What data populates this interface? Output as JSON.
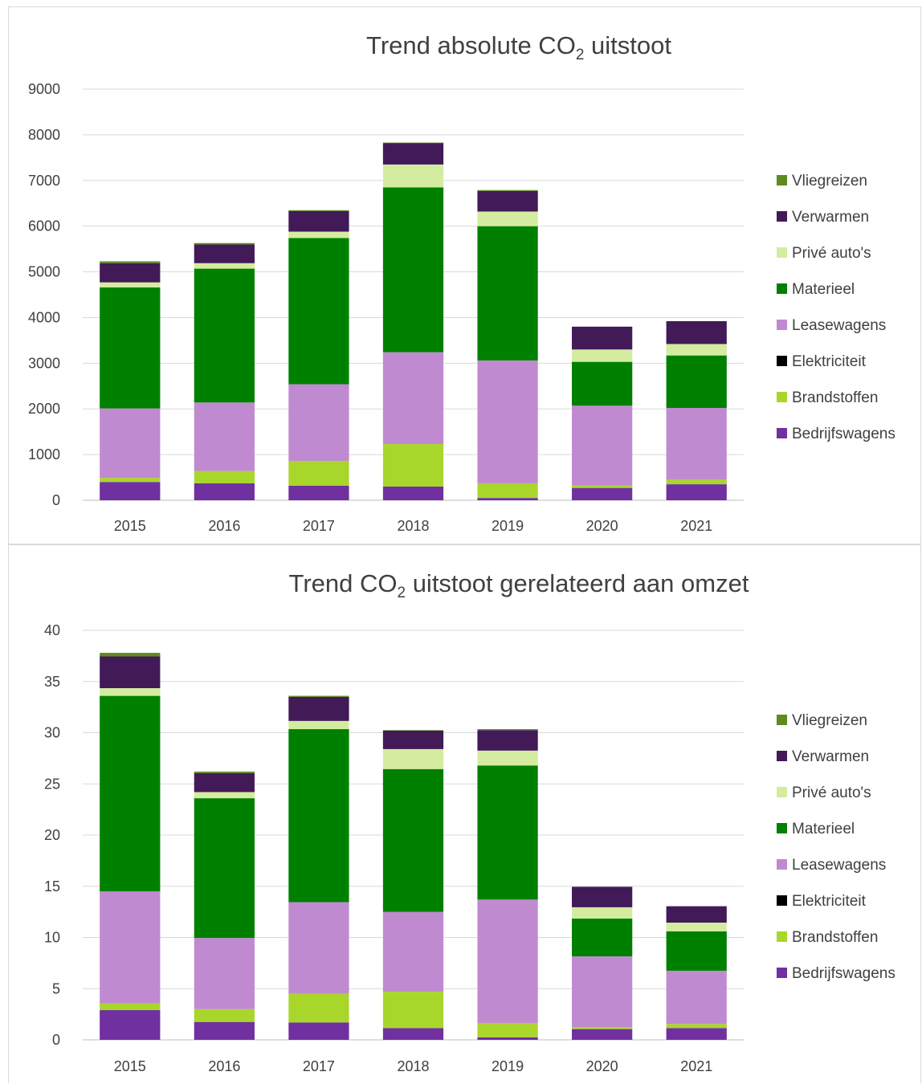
{
  "colors": {
    "Bedrijfswagens": "#7030a0",
    "Brandstoffen": "#a9d62a",
    "Elektriciteit": "#000000",
    "Leasewagens": "#c08ad0",
    "Materieel": "#008000",
    "Privé auto's": "#d4eca0",
    "Verwarmen": "#421a57",
    "Vliegreizen": "#5e8a1f"
  },
  "chart_data": [
    {
      "type": "bar",
      "stacked": true,
      "title_main": "Trend absolute CO",
      "title_sub": "2",
      "title_rest": " uitstoot",
      "categories": [
        "2015",
        "2016",
        "2017",
        "2018",
        "2019",
        "2020",
        "2021"
      ],
      "ylim": [
        0,
        9000
      ],
      "yticks": [
        "0",
        "1000",
        "2000",
        "3000",
        "4000",
        "5000",
        "6000",
        "7000",
        "8000",
        "9000"
      ],
      "grid": true,
      "legend_position": "right",
      "legend": [
        "Vliegreizen",
        "Verwarmen",
        "Privé auto's",
        "Materieel",
        "Leasewagens",
        "Elektriciteit",
        "Brandstoffen",
        "Bedrijfswagens"
      ],
      "series": [
        {
          "name": "Bedrijfswagens",
          "values": [
            400,
            370,
            320,
            300,
            50,
            270,
            350
          ]
        },
        {
          "name": "Brandstoffen",
          "values": [
            90,
            270,
            540,
            930,
            320,
            50,
            100
          ]
        },
        {
          "name": "Elektriciteit",
          "values": [
            0,
            0,
            0,
            0,
            0,
            0,
            0
          ]
        },
        {
          "name": "Leasewagens",
          "values": [
            1520,
            1500,
            1680,
            2010,
            2690,
            1750,
            1570
          ]
        },
        {
          "name": "Materieel",
          "values": [
            2650,
            2930,
            3200,
            3610,
            2940,
            960,
            1150
          ]
        },
        {
          "name": "Privé auto's",
          "values": [
            110,
            120,
            140,
            500,
            320,
            270,
            250
          ]
        },
        {
          "name": "Verwarmen",
          "values": [
            420,
            410,
            450,
            470,
            450,
            500,
            500
          ]
        },
        {
          "name": "Vliegreizen",
          "values": [
            40,
            30,
            20,
            10,
            20,
            0,
            0
          ]
        }
      ]
    },
    {
      "type": "bar",
      "stacked": true,
      "title_main": "Trend CO",
      "title_sub": "2",
      "title_rest": " uitstoot gerelateerd aan omzet",
      "categories": [
        "2015",
        "2016",
        "2017",
        "2018",
        "2019",
        "2020",
        "2021"
      ],
      "ylim": [
        0,
        40
      ],
      "yticks": [
        "0",
        "5",
        "10",
        "15",
        "20",
        "25",
        "30",
        "35",
        "40"
      ],
      "grid": true,
      "legend_position": "right",
      "legend": [
        "Vliegreizen",
        "Verwarmen",
        "Privé auto's",
        "Materieel",
        "Leasewagens",
        "Elektriciteit",
        "Brandstoffen",
        "Bedrijfswagens"
      ],
      "series": [
        {
          "name": "Bedrijfswagens",
          "values": [
            2.9,
            1.75,
            1.7,
            1.15,
            0.25,
            1.05,
            1.15
          ]
        },
        {
          "name": "Brandstoffen",
          "values": [
            0.65,
            1.25,
            2.8,
            3.55,
            1.4,
            0.2,
            0.4
          ]
        },
        {
          "name": "Elektriciteit",
          "values": [
            0,
            0,
            0,
            0,
            0,
            0,
            0
          ]
        },
        {
          "name": "Leasewagens",
          "values": [
            10.95,
            6.95,
            8.95,
            7.8,
            12.05,
            6.9,
            5.2
          ]
        },
        {
          "name": "Materieel",
          "values": [
            19.1,
            13.65,
            16.9,
            13.95,
            13.1,
            3.7,
            3.85
          ]
        },
        {
          "name": "Privé auto's",
          "values": [
            0.75,
            0.6,
            0.8,
            1.95,
            1.45,
            1.1,
            0.85
          ]
        },
        {
          "name": "Verwarmen",
          "values": [
            3.1,
            1.85,
            2.35,
            1.8,
            2.0,
            2.0,
            1.6
          ]
        },
        {
          "name": "Vliegreizen",
          "values": [
            0.35,
            0.15,
            0.1,
            0.05,
            0.1,
            0,
            0
          ]
        }
      ]
    }
  ]
}
